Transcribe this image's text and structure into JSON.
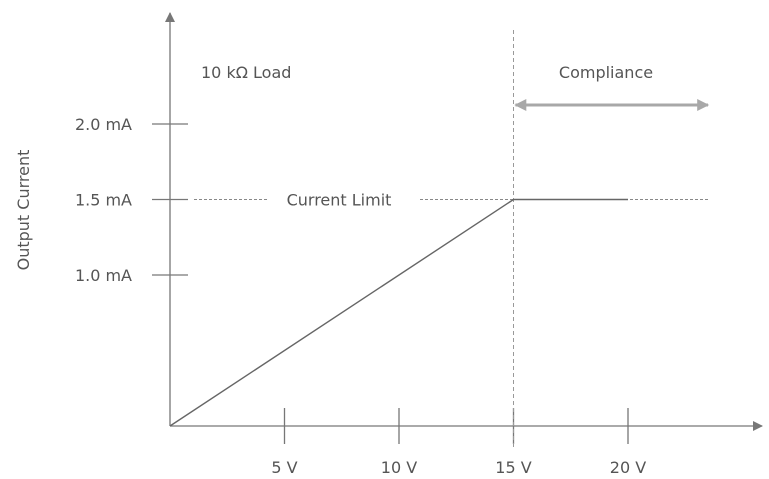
{
  "chart_data": {
    "type": "line",
    "title": "",
    "xlabel": "",
    "ylabel": "Output Current",
    "xlim": [
      0,
      24
    ],
    "ylim": [
      0,
      2.5
    ],
    "x_ticks": [
      {
        "value": 5,
        "label": "5 V"
      },
      {
        "value": 10,
        "label": "10 V"
      },
      {
        "value": 15,
        "label": "15 V"
      },
      {
        "value": 20,
        "label": "20 V"
      }
    ],
    "y_ticks": [
      {
        "value": 1.0,
        "label": "1.0 mA"
      },
      {
        "value": 1.5,
        "label": "1.5 mA"
      },
      {
        "value": 2.0,
        "label": "2.0 mA"
      }
    ],
    "series": [
      {
        "x": [
          0,
          15,
          20
        ],
        "y": [
          0,
          1.5,
          1.5
        ]
      }
    ],
    "current_limit": {
      "value": 1.5,
      "label": "Current Limit"
    },
    "compliance": {
      "x": 15,
      "label": "Compliance"
    },
    "annotations": {
      "load": "10 kΩ Load"
    },
    "grid": false,
    "legend": "none"
  }
}
